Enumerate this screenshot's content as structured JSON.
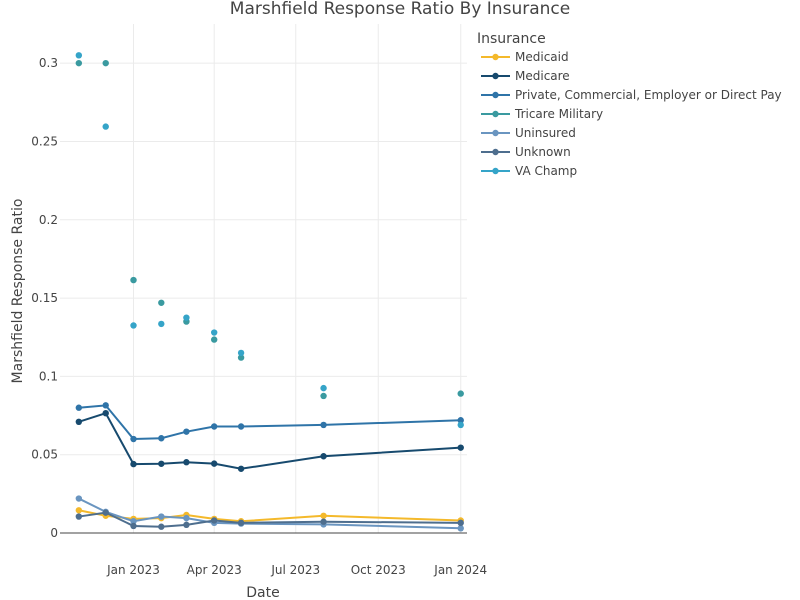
{
  "chart_data": {
    "type": "line",
    "title": "Marshfield Response Ratio By Insurance",
    "xlabel": "Date",
    "ylabel": "Marshfield Response Ratio",
    "x_range": [
      "2022-10-11",
      "2024-01-08"
    ],
    "y_range": [
      0,
      0.325
    ],
    "x_ticks": [
      {
        "date": "2023-01-01",
        "label": "Jan 2023"
      },
      {
        "date": "2023-04-01",
        "label": "Apr 2023"
      },
      {
        "date": "2023-07-01",
        "label": "Jul 2023"
      },
      {
        "date": "2023-10-01",
        "label": "Oct 2023"
      },
      {
        "date": "2024-01-01",
        "label": "Jan 2024"
      }
    ],
    "y_ticks": [
      {
        "value": 0,
        "label": "0"
      },
      {
        "value": 0.05,
        "label": "0.05"
      },
      {
        "value": 0.1,
        "label": "0.1"
      },
      {
        "value": 0.15,
        "label": "0.15"
      },
      {
        "value": 0.2,
        "label": "0.2"
      },
      {
        "value": 0.25,
        "label": "0.25"
      },
      {
        "value": 0.3,
        "label": "0.3"
      }
    ],
    "grid": true,
    "legend": {
      "title": "Insurance",
      "position": "top-right"
    },
    "series": [
      {
        "name": "Medicaid",
        "color": "#f4b92b",
        "mode": "lines+markers",
        "points": [
          [
            "2022-11-01",
            0.0145
          ],
          [
            "2022-12-01",
            0.011
          ],
          [
            "2023-01-01",
            0.009
          ],
          [
            "2023-02-01",
            0.0095
          ],
          [
            "2023-03-01",
            0.0115
          ],
          [
            "2023-04-01",
            0.009
          ],
          [
            "2023-05-01",
            0.0075
          ],
          [
            "2023-08-01",
            0.011
          ],
          [
            "2024-01-01",
            0.008
          ]
        ]
      },
      {
        "name": "Medicare",
        "color": "#174a6e",
        "mode": "lines+markers",
        "points": [
          [
            "2022-11-01",
            0.071
          ],
          [
            "2022-12-01",
            0.0765
          ],
          [
            "2023-01-01",
            0.044
          ],
          [
            "2023-02-01",
            0.0442
          ],
          [
            "2023-03-01",
            0.0452
          ],
          [
            "2023-04-01",
            0.0443
          ],
          [
            "2023-05-01",
            0.041
          ],
          [
            "2023-08-01",
            0.049
          ],
          [
            "2024-01-01",
            0.0545
          ]
        ]
      },
      {
        "name": "Private, Commercial, Employer or Direct Pay",
        "color": "#2f74a8",
        "mode": "lines+markers",
        "points": [
          [
            "2022-11-01",
            0.08
          ],
          [
            "2022-12-01",
            0.0815
          ],
          [
            "2023-01-01",
            0.06
          ],
          [
            "2023-02-01",
            0.0605
          ],
          [
            "2023-03-01",
            0.0647
          ],
          [
            "2023-04-01",
            0.068
          ],
          [
            "2023-05-01",
            0.068
          ],
          [
            "2023-08-01",
            0.069
          ],
          [
            "2024-01-01",
            0.072
          ]
        ]
      },
      {
        "name": "Tricare Military",
        "color": "#3a9aa0",
        "mode": "markers",
        "points": [
          [
            "2022-11-01",
            0.3
          ],
          [
            "2022-12-01",
            0.3
          ],
          [
            "2023-01-01",
            0.1615
          ],
          [
            "2023-02-01",
            0.147
          ],
          [
            "2023-03-01",
            0.135
          ],
          [
            "2023-04-01",
            0.1235
          ],
          [
            "2023-05-01",
            0.112
          ],
          [
            "2023-08-01",
            0.0875
          ],
          [
            "2024-01-01",
            0.089
          ]
        ]
      },
      {
        "name": "Uninsured",
        "color": "#6a95c0",
        "mode": "lines+markers",
        "points": [
          [
            "2022-11-01",
            0.022
          ],
          [
            "2022-12-01",
            0.0135
          ],
          [
            "2023-01-01",
            0.0075
          ],
          [
            "2023-02-01",
            0.0105
          ],
          [
            "2023-03-01",
            0.0095
          ],
          [
            "2023-04-01",
            0.0065
          ],
          [
            "2023-05-01",
            0.006
          ],
          [
            "2023-08-01",
            0.0055
          ],
          [
            "2024-01-01",
            0.003
          ]
        ]
      },
      {
        "name": "Unknown",
        "color": "#4e6e8e",
        "mode": "lines+markers",
        "points": [
          [
            "2022-11-01",
            0.0105
          ],
          [
            "2022-12-01",
            0.013
          ],
          [
            "2023-01-01",
            0.0045
          ],
          [
            "2023-02-01",
            0.004
          ],
          [
            "2023-03-01",
            0.0052
          ],
          [
            "2023-04-01",
            0.008
          ],
          [
            "2023-05-01",
            0.0065
          ],
          [
            "2023-08-01",
            0.0072
          ],
          [
            "2024-01-01",
            0.0065
          ]
        ]
      },
      {
        "name": "VA Champ",
        "color": "#35a4c8",
        "mode": "markers",
        "points": [
          [
            "2022-11-01",
            0.305
          ],
          [
            "2022-12-01",
            0.2595
          ],
          [
            "2023-01-01",
            0.1325
          ],
          [
            "2023-02-01",
            0.1335
          ],
          [
            "2023-03-01",
            0.1375
          ],
          [
            "2023-04-01",
            0.128
          ],
          [
            "2023-05-01",
            0.115
          ],
          [
            "2023-08-01",
            0.0925
          ],
          [
            "2024-01-01",
            0.069
          ]
        ]
      }
    ]
  }
}
